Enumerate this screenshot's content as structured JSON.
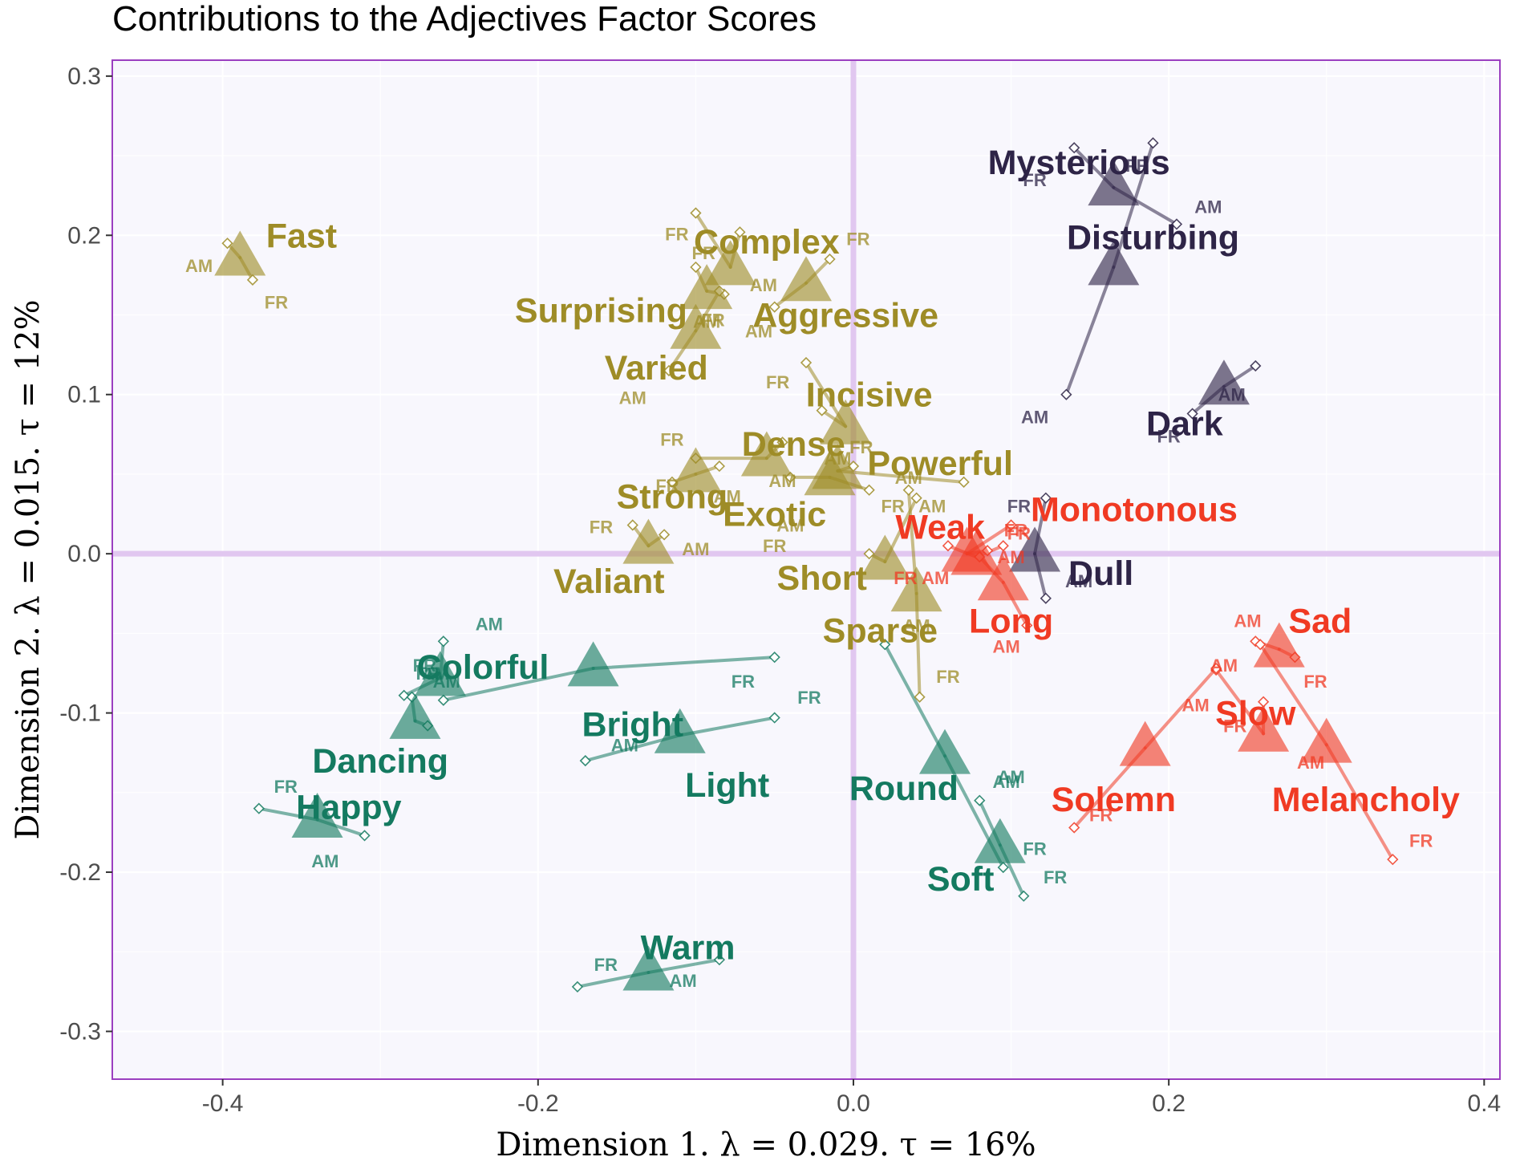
{
  "chart_data": {
    "type": "scatter",
    "title": "Contributions to the Adjectives Factor Scores",
    "xlabel": "Dimension 1.   λ = 0.029.  τ = 16%",
    "ylabel": "Dimension 2.   λ = 0.015.  τ = 12%",
    "xlim": [
      -0.47,
      0.41
    ],
    "ylim": [
      -0.33,
      0.31
    ],
    "xticks": [
      -0.4,
      -0.2,
      0.0,
      0.2,
      0.4
    ],
    "xtick_labels": [
      "-0.4",
      "-0.2",
      "0.0",
      "0.2",
      "0.4"
    ],
    "yticks": [
      -0.3,
      -0.2,
      -0.1,
      0.0,
      0.1,
      0.2,
      0.3
    ],
    "ytick_labels": [
      "-0.3",
      "-0.2",
      "-0.1",
      "0.0",
      "0.1",
      "0.2",
      "0.3"
    ],
    "grid": true,
    "legend": "none",
    "colors": {
      "olive": "#9E8C27",
      "teal": "#147A60",
      "red": "#F03A23",
      "navy": "#2E2447",
      "background": "#F8F7FD",
      "frame": "#9B3FC0",
      "origin_lines": "#E1C7F0"
    },
    "group_labels": [
      "AM",
      "FR"
    ],
    "points": [
      {
        "label": "Fast",
        "color": "olive",
        "x": -0.389,
        "y": 0.186,
        "am": [
          -0.397,
          0.195
        ],
        "fr": [
          -0.381,
          0.172
        ],
        "lx": -0.35,
        "ly": 0.2,
        "amx": -0.415,
        "amy": 0.181,
        "frx": -0.366,
        "fry": 0.158
      },
      {
        "label": "Complex",
        "color": "olive",
        "x": -0.078,
        "y": 0.18,
        "am": [
          -0.072,
          0.202
        ],
        "fr": [
          -0.1,
          0.214
        ],
        "lx": -0.055,
        "ly": 0.196,
        "amx": -0.057,
        "amy": 0.169,
        "frx": -0.112,
        "fry": 0.201
      },
      {
        "label": "Aggressive",
        "color": "olive",
        "x": -0.03,
        "y": 0.17,
        "am": [
          -0.05,
          0.155
        ],
        "fr": [
          -0.015,
          0.185
        ],
        "lx": -0.005,
        "ly": 0.15,
        "amx": -0.06,
        "amy": 0.14,
        "frx": 0.003,
        "fry": 0.198
      },
      {
        "label": "Surprising",
        "color": "olive",
        "x": -0.093,
        "y": 0.165,
        "am": [
          -0.082,
          0.163
        ],
        "fr": [
          -0.1,
          0.18
        ],
        "lx": -0.16,
        "ly": 0.153,
        "amx": -0.093,
        "amy": 0.146,
        "frx": -0.095,
        "fry": 0.189
      },
      {
        "label": "Varied",
        "color": "olive",
        "x": -0.1,
        "y": 0.14,
        "am": [
          -0.117,
          0.115
        ],
        "fr": [
          -0.085,
          0.165
        ],
        "lx": -0.125,
        "ly": 0.117,
        "amx": -0.14,
        "amy": 0.098,
        "frx": -0.089,
        "fry": 0.147
      },
      {
        "label": "Incisive",
        "color": "olive",
        "x": -0.005,
        "y": 0.08,
        "am": [
          -0.02,
          0.09
        ],
        "fr": [
          -0.03,
          0.12
        ],
        "lx": 0.01,
        "ly": 0.1,
        "amx": -0.01,
        "amy": 0.06,
        "frx": -0.048,
        "fry": 0.108
      },
      {
        "label": "Dense",
        "color": "olive",
        "x": -0.055,
        "y": 0.06,
        "am": [
          -0.045,
          0.07
        ],
        "fr": [
          -0.1,
          0.06
        ],
        "lx": -0.038,
        "ly": 0.069,
        "amx": -0.045,
        "amy": 0.046,
        "frx": -0.115,
        "fry": 0.072
      },
      {
        "label": "Powerful",
        "color": "olive",
        "x": -0.01,
        "y": 0.052,
        "am": [
          0.0,
          0.055
        ],
        "fr": [
          0.07,
          0.045
        ],
        "lx": 0.055,
        "ly": 0.057,
        "amx": 0.035,
        "amy": 0.048,
        "frx": 0.005,
        "fry": 0.067
      },
      {
        "label": "Exotic",
        "color": "olive",
        "x": -0.015,
        "y": 0.048,
        "am": [
          -0.04,
          0.048
        ],
        "fr": [
          0.01,
          0.04
        ],
        "lx": -0.05,
        "ly": 0.025,
        "amx": -0.04,
        "amy": 0.018,
        "frx": 0.025,
        "fry": 0.03
      },
      {
        "label": "Strong",
        "color": "olive",
        "x": -0.1,
        "y": 0.05,
        "am": [
          -0.085,
          0.055
        ],
        "fr": [
          -0.115,
          0.045
        ],
        "lx": -0.115,
        "ly": 0.036,
        "amx": -0.08,
        "amy": 0.036,
        "frx": -0.118,
        "fry": 0.043
      },
      {
        "label": "Valiant",
        "color": "olive",
        "x": -0.13,
        "y": 0.005,
        "am": [
          -0.12,
          0.012
        ],
        "fr": [
          -0.14,
          0.018
        ],
        "lx": -0.155,
        "ly": -0.017,
        "amx": -0.1,
        "amy": 0.003,
        "frx": -0.16,
        "fry": 0.017
      },
      {
        "label": "Short",
        "color": "olive",
        "x": 0.02,
        "y": -0.005,
        "am": [
          0.04,
          0.035
        ],
        "fr": [
          0.01,
          0.0
        ],
        "lx": -0.02,
        "ly": -0.015,
        "amx": 0.05,
        "amy": 0.03,
        "frx": -0.05,
        "fry": 0.005
      },
      {
        "label": "Sparse",
        "color": "olive",
        "x": 0.04,
        "y": -0.025,
        "am": [
          0.035,
          0.04
        ],
        "fr": [
          0.042,
          -0.09
        ],
        "lx": 0.017,
        "ly": -0.048,
        "amx": 0.04,
        "amy": -0.045,
        "frx": 0.06,
        "fry": -0.077
      },
      {
        "label": "Mysterious",
        "color": "navy",
        "x": 0.165,
        "y": 0.23,
        "am": [
          0.205,
          0.207
        ],
        "fr": [
          0.14,
          0.255
        ],
        "lx": 0.143,
        "ly": 0.246,
        "amx": 0.225,
        "amy": 0.218,
        "frx": 0.115,
        "fry": 0.235
      },
      {
        "label": "Disturbing",
        "color": "navy",
        "x": 0.165,
        "y": 0.18,
        "am": [
          0.135,
          0.1
        ],
        "fr": [
          0.19,
          0.258
        ],
        "lx": 0.19,
        "ly": 0.199,
        "amx": 0.115,
        "amy": 0.086,
        "frx": 0.18,
        "fry": 0.244
      },
      {
        "label": "Dark",
        "color": "navy",
        "x": 0.235,
        "y": 0.105,
        "am": [
          0.255,
          0.118
        ],
        "fr": [
          0.215,
          0.088
        ],
        "lx": 0.21,
        "ly": 0.082,
        "amx": 0.24,
        "amy": 0.1,
        "frx": 0.2,
        "fry": 0.074
      },
      {
        "label": "Dull",
        "color": "navy",
        "x": 0.115,
        "y": 0.0,
        "am": [
          0.122,
          -0.028
        ],
        "fr": [
          0.122,
          0.035
        ],
        "lx": 0.157,
        "ly": -0.012,
        "amx": 0.143,
        "amy": -0.017,
        "frx": 0.105,
        "fry": 0.03
      },
      {
        "label": "Monotonous",
        "color": "red",
        "x": 0.072,
        "y": 0.0,
        "am": [
          0.085,
          0.002
        ],
        "fr": [
          0.1,
          0.018
        ],
        "lx": 0.178,
        "ly": 0.028,
        "amx": 0.1,
        "amy": -0.002,
        "frx": 0.103,
        "fry": 0.015
      },
      {
        "label": "Weak",
        "color": "red",
        "x": 0.078,
        "y": -0.002,
        "am": [
          0.06,
          0.005
        ],
        "fr": [
          0.095,
          0.005
        ],
        "lx": 0.055,
        "ly": 0.017,
        "amx": 0.052,
        "amy": -0.015,
        "frx": 0.033,
        "fry": -0.015
      },
      {
        "label": "Long",
        "color": "red",
        "x": 0.095,
        "y": -0.018,
        "am": [
          0.08,
          -0.002
        ],
        "fr": [
          0.11,
          -0.045
        ],
        "lx": 0.1,
        "ly": -0.042,
        "amx": 0.097,
        "amy": -0.058,
        "frx": 0.105,
        "fry": 0.013
      },
      {
        "label": "Sad",
        "color": "red",
        "x": 0.27,
        "y": -0.06,
        "am": [
          0.255,
          -0.055
        ],
        "fr": [
          0.28,
          -0.065
        ],
        "lx": 0.296,
        "ly": -0.042,
        "amx": 0.25,
        "amy": -0.042,
        "frx": 0.293,
        "fry": -0.08
      },
      {
        "label": "Slow",
        "color": "red",
        "x": 0.26,
        "y": -0.113,
        "am": [
          0.23,
          -0.073
        ],
        "fr": [
          0.26,
          -0.093
        ],
        "lx": 0.255,
        "ly": -0.1,
        "amx": 0.217,
        "amy": -0.095,
        "frx": 0.242,
        "fry": -0.108
      },
      {
        "label": "Solemn",
        "color": "red",
        "x": 0.185,
        "y": -0.122,
        "am": [
          0.23,
          -0.072
        ],
        "fr": [
          0.14,
          -0.172
        ],
        "lx": 0.165,
        "ly": -0.154,
        "amx": 0.235,
        "amy": -0.07,
        "frx": 0.157,
        "fry": -0.164
      },
      {
        "label": "Melancholy",
        "color": "red",
        "x": 0.3,
        "y": -0.12,
        "am": [
          0.258,
          -0.057
        ],
        "fr": [
          0.342,
          -0.192
        ],
        "lx": 0.325,
        "ly": -0.154,
        "amx": 0.29,
        "amy": -0.131,
        "frx": 0.36,
        "fry": -0.18
      },
      {
        "label": "Colorful",
        "color": "teal",
        "x": -0.262,
        "y": -0.078,
        "am": [
          -0.26,
          -0.055
        ],
        "fr": [
          -0.285,
          -0.089
        ],
        "lx": -0.235,
        "ly": -0.071,
        "amx": -0.231,
        "amy": -0.044,
        "frx": -0.272,
        "fry": -0.07
      },
      {
        "label": "Bright",
        "color": "teal",
        "x": -0.165,
        "y": -0.072,
        "am": [
          -0.26,
          -0.092
        ],
        "fr": [
          -0.05,
          -0.065
        ],
        "lx": -0.14,
        "ly": -0.107,
        "amx": -0.258,
        "amy": -0.08,
        "frx": -0.07,
        "fry": -0.08
      },
      {
        "label": "Light",
        "color": "teal",
        "x": -0.11,
        "y": -0.114,
        "am": [
          -0.17,
          -0.13
        ],
        "fr": [
          -0.05,
          -0.103
        ],
        "lx": -0.08,
        "ly": -0.145,
        "amx": -0.145,
        "amy": -0.12,
        "frx": -0.028,
        "fry": -0.09
      },
      {
        "label": "Dancing",
        "color": "teal",
        "x": -0.278,
        "y": -0.105,
        "am": [
          -0.27,
          -0.108
        ],
        "fr": [
          -0.28,
          -0.09
        ],
        "lx": -0.3,
        "ly": -0.13,
        "amx": -0.265,
        "amy": -0.075,
        "frx": -0.27,
        "fry": -0.075
      },
      {
        "label": "Happy",
        "color": "teal",
        "x": -0.34,
        "y": -0.167,
        "am": [
          -0.31,
          -0.177
        ],
        "fr": [
          -0.377,
          -0.16
        ],
        "lx": -0.32,
        "ly": -0.159,
        "amx": -0.335,
        "amy": -0.193,
        "frx": -0.36,
        "fry": -0.146
      },
      {
        "label": "Warm",
        "color": "teal",
        "x": -0.13,
        "y": -0.263,
        "am": [
          -0.085,
          -0.255
        ],
        "fr": [
          -0.175,
          -0.272
        ],
        "lx": -0.105,
        "ly": -0.247,
        "amx": -0.108,
        "amy": -0.268,
        "frx": -0.157,
        "fry": -0.258
      },
      {
        "label": "Round",
        "color": "teal",
        "x": 0.058,
        "y": -0.127,
        "am": [
          0.02,
          -0.057
        ],
        "fr": [
          0.095,
          -0.197
        ],
        "lx": 0.032,
        "ly": -0.147,
        "amx": 0.1,
        "amy": -0.14,
        "frx": 0.115,
        "fry": -0.185
      },
      {
        "label": "Soft",
        "color": "teal",
        "x": 0.093,
        "y": -0.183,
        "am": [
          0.08,
          -0.155
        ],
        "fr": [
          0.108,
          -0.215
        ],
        "lx": 0.068,
        "ly": -0.204,
        "amx": 0.097,
        "amy": -0.143,
        "frx": 0.128,
        "fry": -0.203
      }
    ]
  }
}
